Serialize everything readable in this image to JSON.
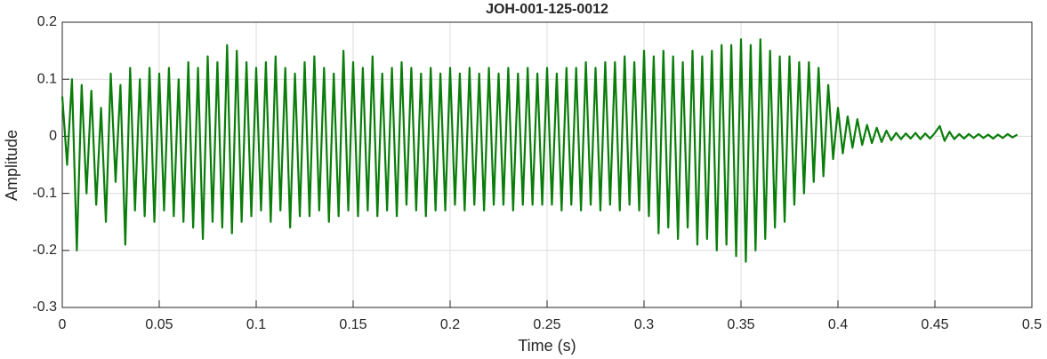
{
  "chart_data": {
    "type": "line",
    "title": "JOH-001-125-0012",
    "xlabel": "Time (s)",
    "ylabel": "Amplitude",
    "color": "#0a7d0a",
    "grid": true,
    "xlim": [
      0,
      0.5
    ],
    "xticks": [
      0,
      0.05,
      0.1,
      0.15,
      0.2,
      0.25,
      0.3,
      0.35,
      0.4,
      0.45,
      0.5
    ],
    "ylim": [
      -0.3,
      0.2
    ],
    "yticks": [
      -0.3,
      -0.2,
      -0.1,
      0,
      0.1,
      0.2
    ],
    "x": [
      0,
      0.0025,
      0.005,
      0.0075,
      0.01,
      0.0125,
      0.015,
      0.0175,
      0.02,
      0.0225,
      0.025,
      0.0275,
      0.03,
      0.0325,
      0.035,
      0.0375,
      0.04,
      0.0425,
      0.045,
      0.0475,
      0.05,
      0.0525,
      0.055,
      0.0575,
      0.06,
      0.0625,
      0.065,
      0.0675,
      0.07,
      0.0725,
      0.075,
      0.0775,
      0.08,
      0.0825,
      0.085,
      0.0875,
      0.09,
      0.0925,
      0.095,
      0.0975,
      0.1,
      0.1025,
      0.105,
      0.1075,
      0.11,
      0.1125,
      0.115,
      0.1175,
      0.12,
      0.1225,
      0.125,
      0.1275,
      0.13,
      0.1325,
      0.135,
      0.1375,
      0.14,
      0.1425,
      0.145,
      0.1475,
      0.15,
      0.1525,
      0.155,
      0.1575,
      0.16,
      0.1625,
      0.165,
      0.1675,
      0.17,
      0.1725,
      0.175,
      0.1775,
      0.18,
      0.1825,
      0.185,
      0.1875,
      0.19,
      0.1925,
      0.195,
      0.1975,
      0.2,
      0.2025,
      0.205,
      0.2075,
      0.21,
      0.2125,
      0.215,
      0.2175,
      0.22,
      0.2225,
      0.225,
      0.2275,
      0.23,
      0.2325,
      0.235,
      0.2375,
      0.24,
      0.2425,
      0.245,
      0.2475,
      0.25,
      0.2525,
      0.255,
      0.2575,
      0.26,
      0.2625,
      0.265,
      0.2675,
      0.27,
      0.2725,
      0.275,
      0.2775,
      0.28,
      0.2825,
      0.285,
      0.2875,
      0.29,
      0.2925,
      0.295,
      0.2975,
      0.3,
      0.3025,
      0.305,
      0.3075,
      0.31,
      0.3125,
      0.315,
      0.3175,
      0.32,
      0.3225,
      0.325,
      0.3275,
      0.33,
      0.3325,
      0.335,
      0.3375,
      0.34,
      0.3425,
      0.345,
      0.3475,
      0.35,
      0.3525,
      0.355,
      0.3575,
      0.36,
      0.3625,
      0.365,
      0.3675,
      0.37,
      0.3725,
      0.375,
      0.3775,
      0.38,
      0.3825,
      0.385,
      0.3875,
      0.39,
      0.3925,
      0.395,
      0.3975,
      0.4,
      0.4025,
      0.405,
      0.4075,
      0.41,
      0.4125,
      0.415,
      0.4175,
      0.42,
      0.4225,
      0.425,
      0.4275,
      0.43,
      0.4325,
      0.435,
      0.4375,
      0.44,
      0.4425,
      0.445,
      0.4475,
      0.45,
      0.4525,
      0.455,
      0.4575,
      0.46,
      0.4625,
      0.465,
      0.4675,
      0.47,
      0.4725,
      0.475,
      0.4775,
      0.48,
      0.4825,
      0.485,
      0.4875,
      0.49,
      0.4925
    ],
    "values": [
      0.07,
      -0.05,
      0.1,
      -0.2,
      0.09,
      -0.1,
      0.08,
      -0.12,
      0.05,
      -0.15,
      0.11,
      -0.08,
      0.09,
      -0.19,
      0.12,
      -0.13,
      0.1,
      -0.14,
      0.12,
      -0.15,
      0.11,
      -0.13,
      0.12,
      -0.14,
      0.1,
      -0.15,
      0.13,
      -0.16,
      0.12,
      -0.18,
      0.14,
      -0.15,
      0.13,
      -0.16,
      0.16,
      -0.17,
      0.15,
      -0.15,
      0.13,
      -0.14,
      0.12,
      -0.13,
      0.13,
      -0.15,
      0.14,
      -0.13,
      0.12,
      -0.16,
      0.11,
      -0.14,
      0.13,
      -0.14,
      0.14,
      -0.13,
      0.12,
      -0.15,
      0.11,
      -0.14,
      0.15,
      -0.13,
      0.13,
      -0.14,
      0.12,
      -0.13,
      0.14,
      -0.14,
      0.11,
      -0.13,
      0.12,
      -0.14,
      0.13,
      -0.12,
      0.12,
      -0.13,
      0.11,
      -0.14,
      0.12,
      -0.13,
      0.11,
      -0.13,
      0.12,
      -0.12,
      0.11,
      -0.13,
      0.12,
      -0.12,
      0.11,
      -0.13,
      0.12,
      -0.12,
      0.11,
      -0.12,
      0.12,
      -0.13,
      0.11,
      -0.12,
      0.12,
      -0.12,
      0.11,
      -0.12,
      0.12,
      -0.12,
      0.11,
      -0.13,
      0.12,
      -0.12,
      0.12,
      -0.13,
      0.13,
      -0.12,
      0.12,
      -0.13,
      0.13,
      -0.12,
      0.13,
      -0.13,
      0.14,
      -0.12,
      0.13,
      -0.13,
      0.15,
      -0.14,
      0.14,
      -0.17,
      0.15,
      -0.16,
      0.14,
      -0.18,
      0.13,
      -0.16,
      0.15,
      -0.19,
      0.14,
      -0.18,
      0.15,
      -0.2,
      0.16,
      -0.19,
      0.16,
      -0.21,
      0.17,
      -0.22,
      0.16,
      -0.2,
      0.17,
      -0.18,
      0.15,
      -0.16,
      0.14,
      -0.15,
      0.14,
      -0.12,
      0.13,
      -0.1,
      0.13,
      -0.08,
      0.12,
      -0.07,
      0.09,
      -0.04,
      0.05,
      -0.03,
      0.035,
      -0.02,
      0.03,
      -0.015,
      0.02,
      -0.012,
      0.015,
      -0.01,
      0.01,
      -0.007,
      0.006,
      -0.005,
      0.005,
      -0.004,
      0.006,
      -0.005,
      0.005,
      -0.004,
      0.006,
      0.018,
      -0.008,
      0.008,
      -0.005,
      0.004,
      -0.004,
      0.004,
      -0.003,
      0.004,
      -0.003,
      0.003,
      -0.004,
      0.003,
      -0.003,
      0.004,
      -0.002,
      0.003
    ]
  }
}
